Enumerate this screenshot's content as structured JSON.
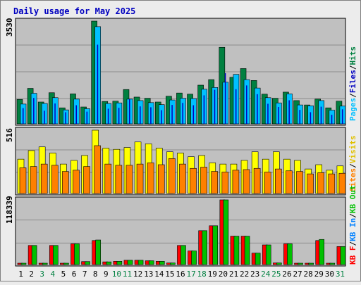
{
  "colors": {
    "background": "#ececec",
    "plot_bg": "#c0c0c0",
    "grid": "#8c8c8c",
    "title": "#0000c0",
    "hits": "#008040",
    "files": "#0000c0",
    "pages": "#00c0ff",
    "visits": "#ffff00",
    "sites": "#ff8000",
    "kb_f": "#ff0000",
    "kb_in": "#0080ff",
    "kb_out": "#00c000",
    "weekday": "#000000",
    "weekend": "#008040",
    "bar_outline": "#000000"
  },
  "chart_data": [
    {
      "type": "bar",
      "title": "Daily usage for May 2025",
      "panel": "hits-files-pages",
      "max_label": "3530",
      "ylim": [
        0,
        3530
      ],
      "legend_right": [
        "Pages",
        "/",
        "Files",
        "/",
        "Hits"
      ],
      "categories": [
        "1",
        "2",
        "3",
        "4",
        "5",
        "6",
        "7",
        "8",
        "9",
        "10",
        "11",
        "12",
        "13",
        "14",
        "15",
        "16",
        "17",
        "18",
        "19",
        "20",
        "21",
        "22",
        "23",
        "24",
        "25",
        "26",
        "27",
        "28",
        "29",
        "30",
        "31"
      ],
      "series": [
        {
          "name": "Hits",
          "values": [
            840,
            1220,
            750,
            1070,
            550,
            1030,
            580,
            3530,
            770,
            780,
            1180,
            920,
            880,
            750,
            950,
            1060,
            1020,
            1330,
            1520,
            2630,
            1600,
            1900,
            1490,
            1020,
            880,
            1090,
            800,
            650,
            850,
            550,
            780
          ]
        },
        {
          "name": "Files",
          "values": [
            540,
            890,
            450,
            700,
            400,
            640,
            420,
            2720,
            520,
            550,
            850,
            600,
            570,
            470,
            650,
            720,
            640,
            980,
            1170,
            1740,
            1190,
            1320,
            1020,
            690,
            580,
            810,
            480,
            400,
            590,
            310,
            500
          ]
        },
        {
          "name": "Pages",
          "values": [
            680,
            1050,
            700,
            900,
            480,
            850,
            520,
            3340,
            700,
            720,
            850,
            800,
            730,
            660,
            820,
            880,
            870,
            1190,
            1250,
            1430,
            1700,
            1520,
            1230,
            900,
            720,
            1030,
            650,
            620,
            800,
            470,
            610
          ]
        }
      ]
    },
    {
      "type": "bar",
      "panel": "visits-sites",
      "max_label": "516",
      "ylim": [
        0,
        516
      ],
      "legend_right": [
        "Sites",
        "/",
        "Visits"
      ],
      "categories": [
        "1",
        "2",
        "3",
        "4",
        "5",
        "6",
        "7",
        "8",
        "9",
        "10",
        "11",
        "12",
        "13",
        "14",
        "15",
        "16",
        "17",
        "18",
        "19",
        "20",
        "21",
        "22",
        "23",
        "24",
        "25",
        "26",
        "27",
        "28",
        "29",
        "30",
        "31"
      ],
      "series": [
        {
          "name": "Visits",
          "values": [
            280,
            350,
            380,
            330,
            240,
            270,
            310,
            516,
            370,
            360,
            375,
            420,
            405,
            370,
            340,
            330,
            300,
            310,
            250,
            240,
            240,
            270,
            340,
            280,
            340,
            280,
            270,
            200,
            235,
            190,
            225
          ]
        },
        {
          "name": "Sites",
          "values": [
            210,
            220,
            240,
            230,
            180,
            190,
            220,
            390,
            240,
            230,
            230,
            240,
            250,
            235,
            285,
            240,
            205,
            215,
            180,
            175,
            190,
            195,
            205,
            175,
            200,
            185,
            180,
            160,
            170,
            160,
            165
          ]
        }
      ]
    },
    {
      "type": "bar",
      "panel": "kbytes",
      "max_label": "118339",
      "ylim": [
        0,
        118339
      ],
      "legend_right": [
        "KB F",
        "/",
        "KB In",
        "/",
        "KB Out"
      ],
      "categories": [
        "1",
        "2",
        "3",
        "4",
        "5",
        "6",
        "7",
        "8",
        "9",
        "10",
        "11",
        "12",
        "13",
        "14",
        "15",
        "16",
        "17",
        "18",
        "19",
        "20",
        "21",
        "22",
        "23",
        "24",
        "25",
        "26",
        "27",
        "28",
        "29",
        "30",
        "31"
      ],
      "weekend_days": [
        3,
        4,
        10,
        11,
        17,
        18,
        24,
        25,
        31
      ],
      "series": [
        {
          "name": "KB F",
          "values": [
            2000,
            35000,
            2000,
            35000,
            1500,
            38000,
            5500,
            44000,
            5000,
            6000,
            8000,
            8000,
            7000,
            6000,
            3000,
            35000,
            25000,
            62000,
            71000,
            118339,
            52000,
            52000,
            21000,
            36000,
            3000,
            38000,
            2000,
            2000,
            44000,
            2000,
            33000
          ]
        },
        {
          "name": "KB Out",
          "values": [
            2000,
            35000,
            2000,
            35000,
            1500,
            38000,
            5500,
            45000,
            5000,
            6000,
            8000,
            8000,
            7000,
            6000,
            3000,
            35000,
            25000,
            62000,
            71000,
            118339,
            52000,
            52000,
            21000,
            36000,
            3000,
            38000,
            2000,
            2000,
            46000,
            2000,
            33000
          ]
        }
      ]
    }
  ]
}
